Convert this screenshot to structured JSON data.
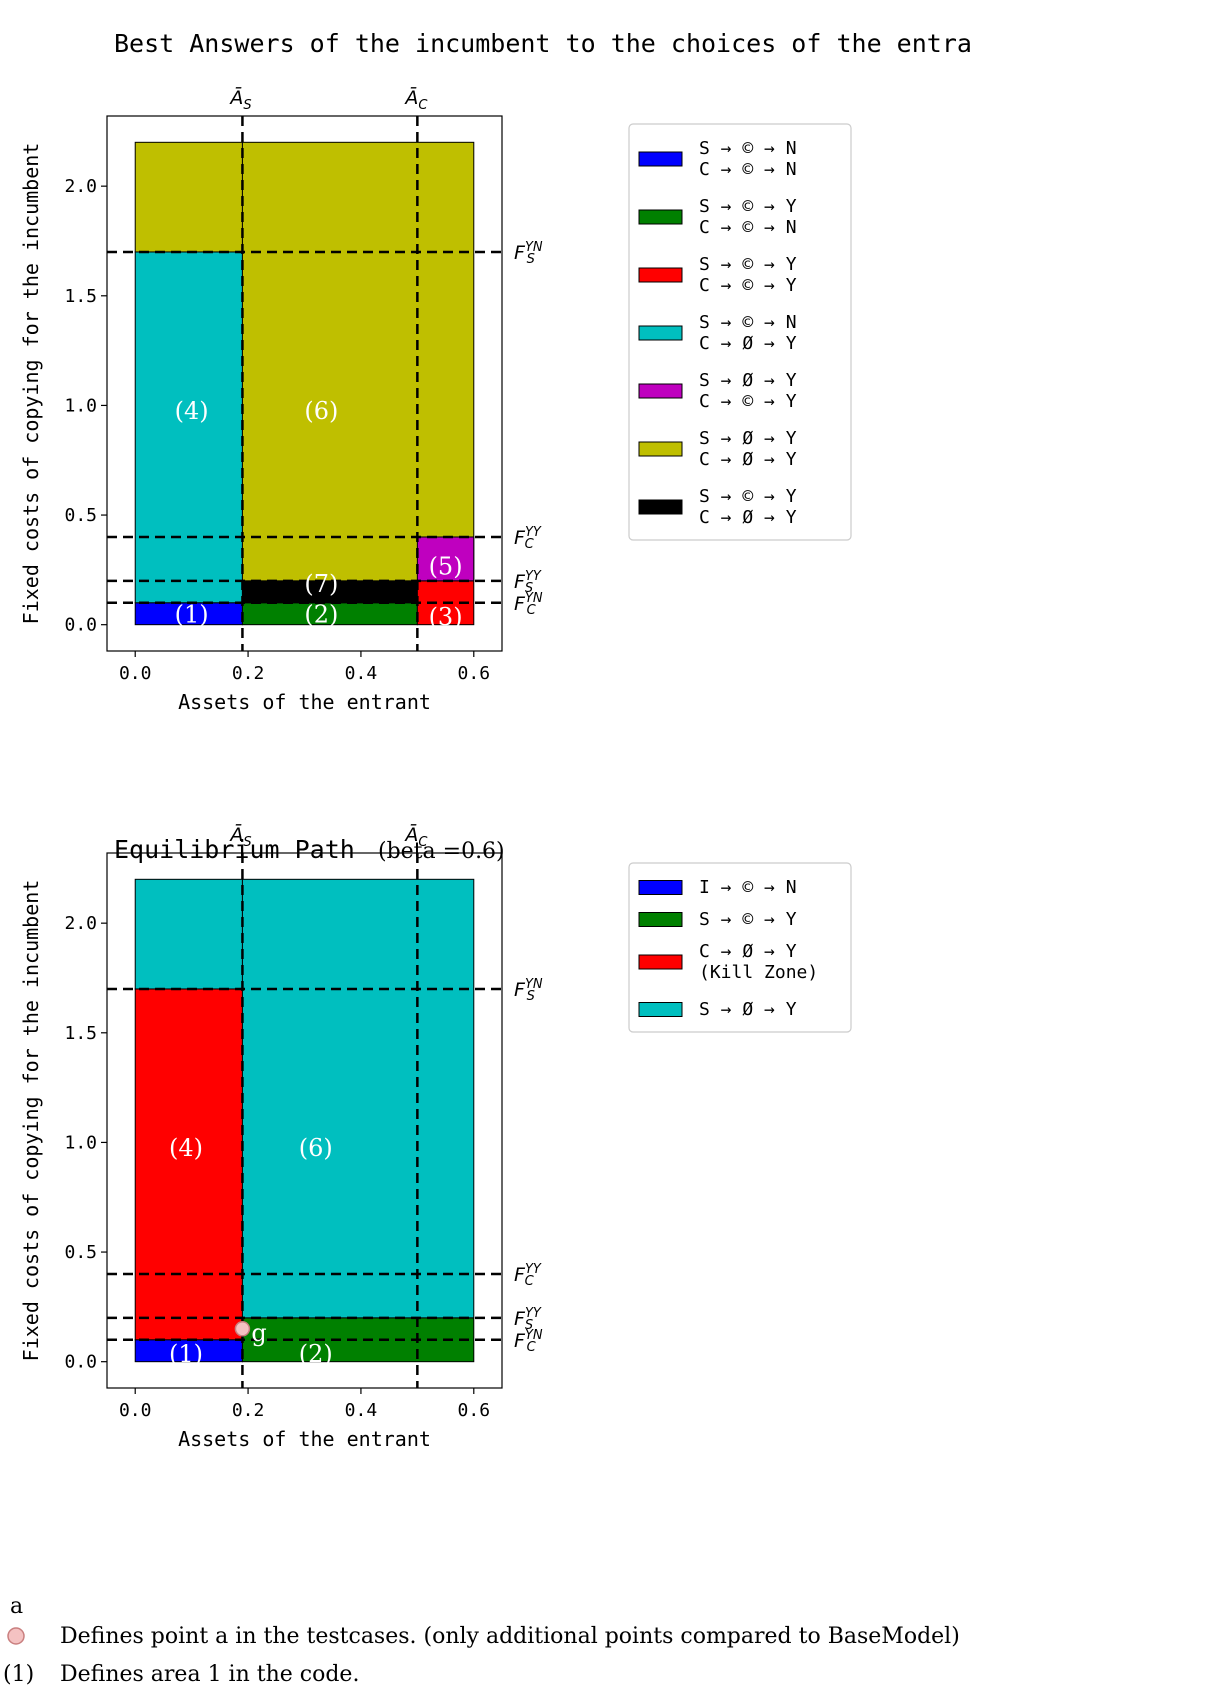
{
  "chart_data": [
    {
      "type": "area",
      "title": "Best Answers of the incumbent to the choices of the entra",
      "subtitle": "",
      "xlabel": "Assets of the entrant",
      "ylabel": "Fixed costs of copying for the incumbent",
      "xlim": [
        -0.05,
        0.65
      ],
      "ylim": [
        -0.12,
        2.32
      ],
      "xticks": [
        0.0,
        0.2,
        0.4,
        0.6
      ],
      "xtick_labels": [
        "0.0",
        "0.2",
        "0.4",
        "0.6"
      ],
      "yticks": [
        0.0,
        0.5,
        1.0,
        1.5,
        2.0
      ],
      "ytick_labels": [
        "0.0",
        "0.5",
        "1.0",
        "1.5",
        "2.0"
      ],
      "grid": false,
      "legend_placement": "outside-right",
      "vlines": [
        {
          "x": 0.19,
          "label": "Ā",
          "sub": "S",
          "sup": ""
        },
        {
          "x": 0.5,
          "label": "Ā",
          "sub": "C",
          "sup": ""
        }
      ],
      "hlines": [
        {
          "y": 1.7,
          "label": "F",
          "sub": "S",
          "sup": "YN"
        },
        {
          "y": 0.4,
          "label": "F",
          "sub": "C",
          "sup": "YY"
        },
        {
          "y": 0.2,
          "label": "F",
          "sub": "S",
          "sup": "YY"
        },
        {
          "y": 0.1,
          "label": "F",
          "sub": "C",
          "sup": "YN"
        }
      ],
      "regions": [
        {
          "x0": 0.0,
          "x1": 0.19,
          "y0": 0.0,
          "y1": 0.1,
          "color": "#0000ff"
        },
        {
          "x0": 0.0,
          "x1": 0.19,
          "y0": 0.1,
          "y1": 1.7,
          "color": "#00bfbf"
        },
        {
          "x0": 0.0,
          "x1": 0.19,
          "y0": 1.7,
          "y1": 2.2,
          "color": "#bfbf00"
        },
        {
          "x0": 0.19,
          "x1": 0.5,
          "y0": 0.0,
          "y1": 0.1,
          "color": "#008000"
        },
        {
          "x0": 0.19,
          "x1": 0.5,
          "y0": 0.1,
          "y1": 0.2,
          "color": "#000000"
        },
        {
          "x0": 0.19,
          "x1": 0.6,
          "y0": 0.2,
          "y1": 2.2,
          "color": "#bfbf00"
        },
        {
          "x0": 0.5,
          "x1": 0.6,
          "y0": 0.0,
          "y1": 0.2,
          "color": "#ff0000"
        },
        {
          "x0": 0.5,
          "x1": 0.6,
          "y0": 0.2,
          "y1": 0.4,
          "color": "#bf00bf"
        }
      ],
      "area_labels": [
        {
          "text": "(4)",
          "x": 0.1,
          "y": 0.98
        },
        {
          "text": "(6)",
          "x": 0.33,
          "y": 0.98
        },
        {
          "text": "(5)",
          "x": 0.55,
          "y": 0.27
        },
        {
          "text": "(7)",
          "x": 0.33,
          "y": 0.19
        },
        {
          "text": "(1)",
          "x": 0.1,
          "y": 0.05
        },
        {
          "text": "(2)",
          "x": 0.33,
          "y": 0.05
        },
        {
          "text": "(3)",
          "x": 0.55,
          "y": 0.04
        }
      ],
      "legend": [
        {
          "color": "#0000ff",
          "lines": [
            "S → © → N",
            "C → © → N"
          ]
        },
        {
          "color": "#008000",
          "lines": [
            "S → © → Y",
            "C → © → N"
          ]
        },
        {
          "color": "#ff0000",
          "lines": [
            "S → © → Y",
            "C → © → Y"
          ]
        },
        {
          "color": "#00bfbf",
          "lines": [
            "S → © → N",
            "C → Ø → Y"
          ]
        },
        {
          "color": "#bf00bf",
          "lines": [
            "S → Ø → Y",
            "C → © → Y"
          ]
        },
        {
          "color": "#bfbf00",
          "lines": [
            "S → Ø → Y",
            "C → Ø → Y"
          ]
        },
        {
          "color": "#000000",
          "lines": [
            "S → © → Y",
            "C → Ø → Y"
          ]
        }
      ]
    },
    {
      "type": "area",
      "title": "Equilibrium Path",
      "subtitle": "(beta =0.6)",
      "xlabel": "Assets of the entrant",
      "ylabel": "Fixed costs of copying for the incumbent",
      "xlim": [
        -0.05,
        0.65
      ],
      "ylim": [
        -0.12,
        2.32
      ],
      "xticks": [
        0.0,
        0.2,
        0.4,
        0.6
      ],
      "xtick_labels": [
        "0.0",
        "0.2",
        "0.4",
        "0.6"
      ],
      "yticks": [
        0.0,
        0.5,
        1.0,
        1.5,
        2.0
      ],
      "ytick_labels": [
        "0.0",
        "0.5",
        "1.0",
        "1.5",
        "2.0"
      ],
      "grid": false,
      "legend_placement": "outside-right",
      "vlines": [
        {
          "x": 0.19,
          "label": "Ā",
          "sub": "S",
          "sup": ""
        },
        {
          "x": 0.5,
          "label": "Ā",
          "sub": "C",
          "sup": ""
        }
      ],
      "hlines": [
        {
          "y": 1.7,
          "label": "F",
          "sub": "S",
          "sup": "YN"
        },
        {
          "y": 0.4,
          "label": "F",
          "sub": "C",
          "sup": "YY"
        },
        {
          "y": 0.2,
          "label": "F",
          "sub": "S",
          "sup": "YY"
        },
        {
          "y": 0.1,
          "label": "F",
          "sub": "C",
          "sup": "YN"
        }
      ],
      "regions": [
        {
          "x0": 0.0,
          "x1": 0.19,
          "y0": 0.0,
          "y1": 0.1,
          "color": "#0000ff"
        },
        {
          "x0": 0.0,
          "x1": 0.19,
          "y0": 0.1,
          "y1": 1.7,
          "color": "#ff0000"
        },
        {
          "x0": 0.0,
          "x1": 0.19,
          "y0": 1.7,
          "y1": 2.2,
          "color": "#00bfbf"
        },
        {
          "x0": 0.19,
          "x1": 0.6,
          "y0": 0.0,
          "y1": 0.2,
          "color": "#008000"
        },
        {
          "x0": 0.19,
          "x1": 0.6,
          "y0": 0.2,
          "y1": 2.2,
          "color": "#00bfbf"
        }
      ],
      "area_labels": [
        {
          "text": "(4)",
          "x": 0.09,
          "y": 0.98
        },
        {
          "text": "(6)",
          "x": 0.32,
          "y": 0.98
        },
        {
          "text": "(1)",
          "x": 0.09,
          "y": 0.04
        },
        {
          "text": "(2)",
          "x": 0.32,
          "y": 0.04
        }
      ],
      "points": [
        {
          "label": "g",
          "x": 0.19,
          "y": 0.15,
          "color": "#f4c2c2"
        }
      ],
      "legend": [
        {
          "color": "#0000ff",
          "lines": [
            "I → © → N"
          ]
        },
        {
          "color": "#008000",
          "lines": [
            "S → © → Y"
          ]
        },
        {
          "color": "#ff0000",
          "lines": [
            "C → Ø → Y",
            "(Kill Zone)"
          ]
        },
        {
          "color": "#00bfbf",
          "lines": [
            "S → Ø → Y"
          ]
        }
      ]
    }
  ],
  "footnote": {
    "point_caption": "a",
    "point_marker_color": "#f4c2c2",
    "point_text": "Defines point a in the testcases. (only additional points compared to BaseModel)",
    "area_marker": "(1)",
    "area_text": "Defines area 1 in the code."
  }
}
